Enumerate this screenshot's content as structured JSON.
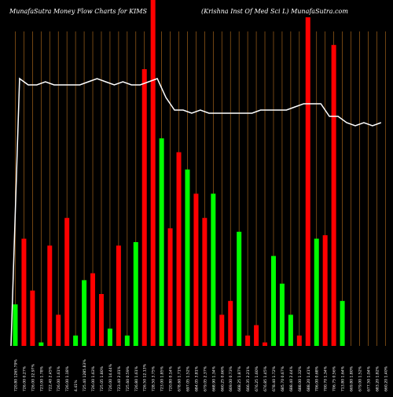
{
  "header": {
    "left": "MunafaSutra  Money Flow  Charts for KIMS",
    "right": "(Krishna  Inst Of Med Sci   L) MunafaSutra.com"
  },
  "colors": {
    "background": "#000000",
    "grid": "#a0621a",
    "up": "#00ff00",
    "down": "#ff0000",
    "line": "#ffffff",
    "label": "#ffffff"
  },
  "chart_data": {
    "type": "bar",
    "title": "MunafaSutra  Money Flow  Charts for KIMS",
    "subtitle": "(Krishna  Inst Of Med Sci   L) MunafaSutra.com",
    "y_axis_visible": false,
    "grid": "vertical",
    "bar_ylim": [
      0,
      100
    ],
    "line_ylim": [
      0,
      100
    ],
    "categories": [
      "720.80 1265.79%",
      "726.00 0.27%",
      "726.00 32.97%",
      "723.00 1.78%",
      "722.40 2.45%",
      "726.00 1.61%",
      "726.00 1.18%",
      "4.41%",
      "725.40 1285.83%",
      "726.00 1.63%",
      "725.05 1.80%",
      "726.00 14.44%",
      "723.40 2.01%",
      "725.60 0.59%",
      "726.80 1.61%",
      "726.50 12.13%",
      "728.50 3.75%",
      "723.00 1.85%",
      "720.80 0.14%",
      "678.60 1.71%",
      "697.05 1.52%",
      "684.05 3.81%",
      "679.05 2.37%",
      "668.90 1.34%",
      "660.25 0.66%",
      "669.00 0.73%",
      "668.25 1.87%",
      "666.35 2.21%",
      "676.25 1.60%",
      "676.85 1.45%",
      "678.40 1.72%",
      "685.70 0.67%",
      "688.40 2.44%",
      "688.00 1.32%",
      "688.20 1.41%",
      "706.00 0.68%",
      "700.70 1.34%",
      "706.75 0.56%",
      "713.80 1.64%",
      "669.80 1.80%",
      "679.00 1.52%",
      "677.50 1.04%",
      "683.20 1.82%",
      "660.20 1.40%"
    ],
    "series": [
      {
        "values": [
          12,
          31,
          16,
          1,
          29,
          9,
          37,
          3,
          19,
          21,
          15,
          5,
          29,
          3,
          30,
          80,
          100,
          60,
          34,
          56,
          51,
          44,
          37,
          44,
          9,
          13,
          33,
          3,
          6,
          1,
          26,
          18,
          9,
          3,
          95,
          31,
          32,
          87,
          13,
          0,
          0,
          0,
          0,
          0
        ],
        "direction": [
          "up",
          "down",
          "down",
          "up",
          "down",
          "down",
          "down",
          "up",
          "up",
          "down",
          "down",
          "up",
          "down",
          "up",
          "up",
          "down",
          "down",
          "up",
          "down",
          "down",
          "up",
          "down",
          "down",
          "up",
          "down",
          "down",
          "up",
          "down",
          "down",
          "down",
          "up",
          "up",
          "up",
          "down",
          "down",
          "up",
          "down",
          "down",
          "up",
          "up",
          "up",
          "up",
          "up",
          "up"
        ]
      }
    ],
    "line": {
      "values": [
        0,
        85,
        83,
        83,
        84,
        83,
        83,
        83,
        83,
        84,
        85,
        84,
        83,
        84,
        83,
        83,
        84,
        85,
        79,
        75,
        75,
        74,
        75,
        74,
        74,
        74,
        74,
        74,
        74,
        75,
        75,
        75,
        75,
        76,
        77,
        77,
        77,
        73,
        73,
        71,
        70,
        71,
        70,
        71
      ]
    }
  }
}
